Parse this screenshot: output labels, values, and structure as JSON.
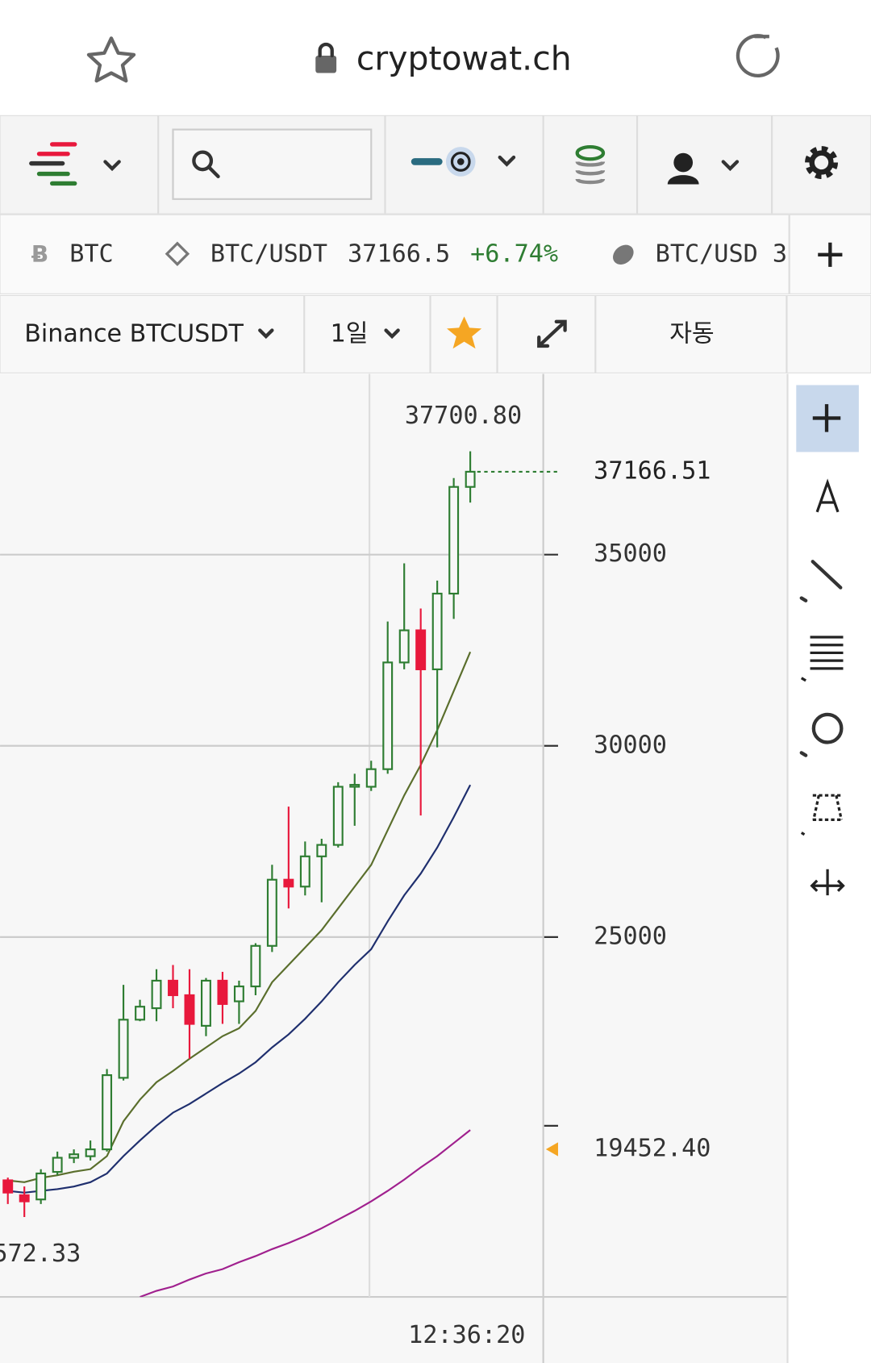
{
  "browser": {
    "url": "cryptowat.ch"
  },
  "ticker": {
    "coin": "BTC",
    "pair": "BTC/USDT",
    "price": "37166.5",
    "change": "+6.74%",
    "pair2": "BTC/USD 3"
  },
  "controls": {
    "market": "Binance BTCUSDT",
    "interval": "1일",
    "mode": "자동"
  },
  "chart_data": {
    "type": "candlestick",
    "open": [
      18640,
      18250,
      18140,
      18860,
      19230,
      19270,
      19450,
      21320,
      22840,
      23140,
      23860,
      23480,
      22680,
      23860,
      23320,
      23710,
      24770,
      26500,
      26320,
      27110,
      27410,
      28930,
      28930,
      29390,
      32180,
      33020,
      32000,
      33980,
      36770
    ],
    "high": [
      18710,
      18480,
      18930,
      19390,
      19450,
      19680,
      21550,
      23750,
      23360,
      24160,
      24270,
      24160,
      23930,
      24090,
      23860,
      24840,
      26890,
      28410,
      27500,
      27570,
      29050,
      29270,
      29610,
      33250,
      34770,
      33590,
      34320,
      37000,
      37700.8
    ],
    "low": [
      18020,
      17680,
      18020,
      18770,
      19090,
      19160,
      19390,
      21250,
      22800,
      22800,
      23140,
      21820,
      22410,
      22730,
      22730,
      23480,
      24610,
      25750,
      26090,
      25910,
      27340,
      27910,
      28820,
      29270,
      32000,
      28180,
      29960,
      33320,
      36360
    ],
    "close": [
      18320,
      18090,
      18820,
      19230,
      19320,
      19450,
      21390,
      22840,
      23180,
      23860,
      23480,
      22730,
      23860,
      23250,
      23710,
      24770,
      26500,
      26320,
      27110,
      27410,
      28930,
      28980,
      29390,
      32180,
      33020,
      32000,
      33980,
      36770,
      37166.51
    ],
    "up_color": "#2e7d32",
    "down_color": "#e8183c",
    "series": [
      {
        "color": "#5a6e2c",
        "values": [
          18637,
          18591,
          18705,
          18773,
          18864,
          18932,
          19273,
          20182,
          20750,
          21205,
          21500,
          21818,
          22114,
          22409,
          22614,
          23068,
          23818,
          24273,
          24727,
          25182,
          25750,
          26318,
          26886,
          27795,
          28705,
          29500,
          30409,
          31432,
          32455
        ]
      },
      {
        "color": "#1f2f6e",
        "values": [
          18364,
          18318,
          18364,
          18409,
          18477,
          18591,
          18818,
          19273,
          19682,
          20068,
          20409,
          20636,
          20909,
          21182,
          21432,
          21727,
          22114,
          22455,
          22864,
          23318,
          23818,
          24273,
          24682,
          25409,
          26091,
          26659,
          27341,
          28136,
          28977
        ]
      },
      {
        "color": "#a0208e",
        "values": [
          null,
          null,
          null,
          null,
          null,
          null,
          null,
          null,
          15591,
          15750,
          15864,
          16045,
          16205,
          16318,
          16500,
          16659,
          16841,
          17000,
          17182,
          17386,
          17614,
          17841,
          18091,
          18364,
          18659,
          18977,
          19273,
          19614,
          19955
        ]
      }
    ],
    "ylim": [
      15591,
      39682
    ],
    "yticks": [
      25000,
      30000,
      35000
    ],
    "grid": true,
    "high_label": {
      "value": 37700.8,
      "label": "37700.80"
    },
    "last_label": {
      "value": 37166.51,
      "label": "37166.51"
    },
    "marker_label": {
      "value": 19452.4,
      "label": "19452.40"
    },
    "low_label": "572.33",
    "time_label": "12:36:20"
  }
}
